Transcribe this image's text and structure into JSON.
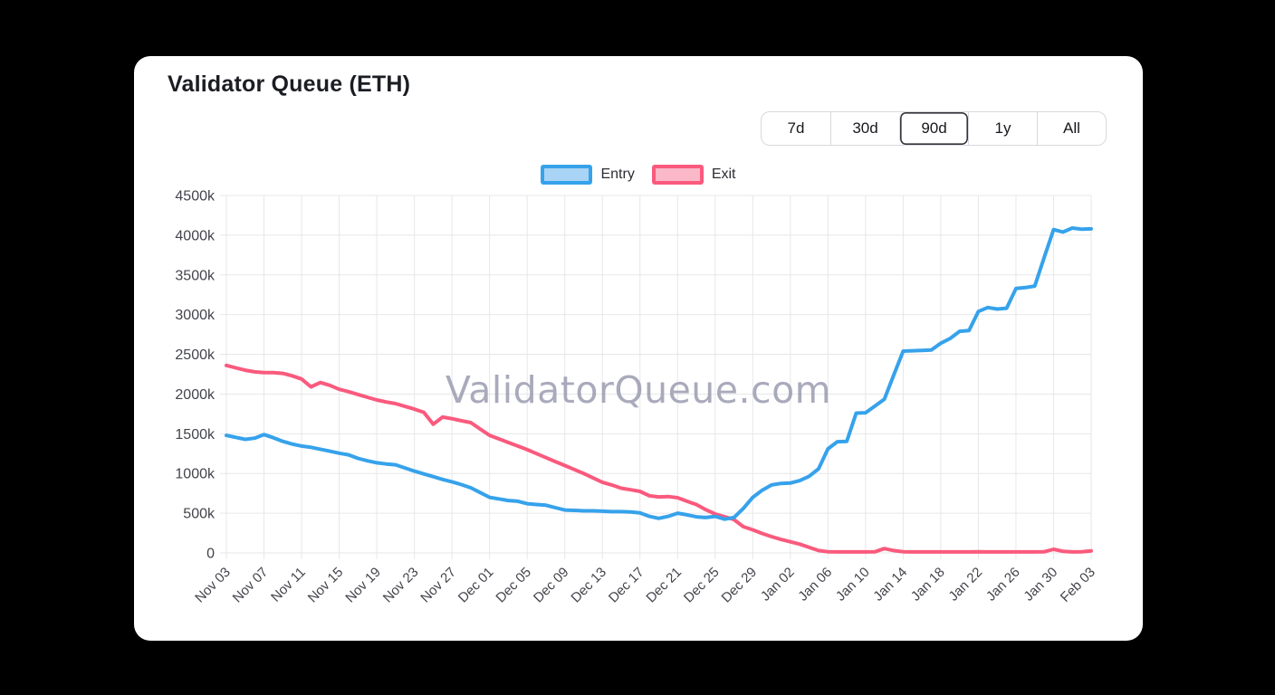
{
  "card": {
    "title": "Validator Queue (ETH)",
    "watermark": "ValidatorQueue.com"
  },
  "range_selector": {
    "options": [
      {
        "label": "7d",
        "selected": false
      },
      {
        "label": "30d",
        "selected": false
      },
      {
        "label": "90d",
        "selected": true
      },
      {
        "label": "1y",
        "selected": false
      },
      {
        "label": "All",
        "selected": false
      }
    ]
  },
  "legend": {
    "entries": [
      {
        "label": "Entry",
        "border_color": "#36A2EB",
        "fill_color": "#A9D4F5"
      },
      {
        "label": "Exit",
        "border_color": "#FA5A7D",
        "fill_color": "#FBB8C8"
      }
    ]
  },
  "chart_data": {
    "type": "line",
    "title": "Validator Queue (ETH)",
    "unit": "validators (thousands, k)",
    "grid": true,
    "legend_position": "top",
    "ylim": [
      0,
      4500
    ],
    "y_tick_values": [
      0,
      500,
      1000,
      1500,
      2000,
      2500,
      3000,
      3500,
      4000,
      4500
    ],
    "y_tick_labels": [
      "0",
      "500k",
      "1000k",
      "1500k",
      "2000k",
      "2500k",
      "3000k",
      "3500k",
      "4000k",
      "4500k"
    ],
    "x_tick_labels": [
      "Nov 03",
      "Nov 07",
      "Nov 11",
      "Nov 15",
      "Nov 19",
      "Nov 23",
      "Nov 27",
      "Dec 01",
      "Dec 05",
      "Dec 09",
      "Dec 13",
      "Dec 17",
      "Dec 21",
      "Dec 25",
      "Dec 29",
      "Jan 02",
      "Jan 06",
      "Jan 10",
      "Jan 14",
      "Jan 18",
      "Jan 22",
      "Jan 26",
      "Jan 30",
      "Feb 03"
    ],
    "x_points_per_tick": 4,
    "x_step_days": 1,
    "series": [
      {
        "name": "Entry",
        "color": "#36A2EB",
        "values": [
          1480,
          1455,
          1430,
          1445,
          1490,
          1450,
          1405,
          1370,
          1345,
          1330,
          1305,
          1280,
          1255,
          1235,
          1190,
          1160,
          1135,
          1120,
          1110,
          1070,
          1030,
          995,
          960,
          925,
          895,
          860,
          820,
          760,
          700,
          680,
          660,
          650,
          620,
          610,
          600,
          570,
          540,
          535,
          530,
          530,
          525,
          520,
          520,
          515,
          505,
          460,
          435,
          460,
          500,
          480,
          455,
          445,
          460,
          425,
          445,
          560,
          700,
          790,
          855,
          875,
          880,
          910,
          965,
          1060,
          1310,
          1400,
          1405,
          1760,
          1765,
          1850,
          1935,
          2240,
          2540,
          2545,
          2550,
          2555,
          2640,
          2700,
          2790,
          2800,
          3040,
          3090,
          3070,
          3080,
          3330,
          3340,
          3360,
          3720,
          4070,
          4040,
          4090,
          4075,
          4080
        ]
      },
      {
        "name": "Exit",
        "color": "#FA5A7D",
        "values": [
          2360,
          2330,
          2300,
          2280,
          2270,
          2270,
          2260,
          2230,
          2190,
          2090,
          2145,
          2110,
          2060,
          2030,
          1995,
          1960,
          1925,
          1900,
          1880,
          1845,
          1810,
          1770,
          1620,
          1710,
          1690,
          1665,
          1640,
          1560,
          1480,
          1435,
          1390,
          1345,
          1300,
          1250,
          1200,
          1150,
          1100,
          1050,
          1000,
          945,
          890,
          855,
          815,
          795,
          775,
          720,
          705,
          710,
          695,
          650,
          610,
          545,
          490,
          455,
          420,
          330,
          290,
          245,
          205,
          170,
          140,
          110,
          70,
          30,
          15,
          12,
          12,
          12,
          12,
          15,
          55,
          30,
          15,
          12,
          12,
          12,
          12,
          12,
          12,
          12,
          15,
          12,
          12,
          12,
          12,
          12,
          12,
          15,
          45,
          20,
          12,
          15,
          25
        ]
      }
    ]
  }
}
